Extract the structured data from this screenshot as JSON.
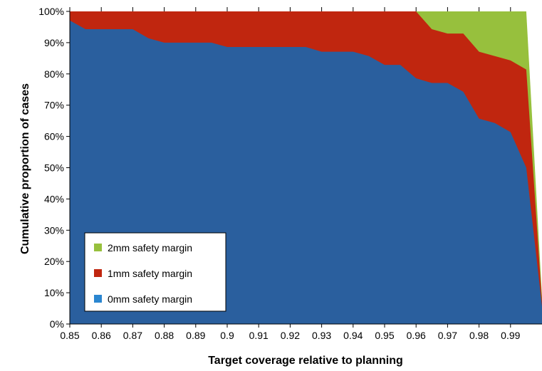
{
  "chart_data": {
    "type": "area",
    "stacked": true,
    "xlabel": "Target coverage relative to planning",
    "ylabel": "Cumulative proportion of cases",
    "xlim": [
      0.85,
      1.0
    ],
    "ylim": [
      0,
      1.0
    ],
    "x_ticks": [
      0.85,
      0.86,
      0.87,
      0.88,
      0.89,
      0.9,
      0.91,
      0.92,
      0.93,
      0.94,
      0.95,
      0.96,
      0.97,
      0.98,
      0.99
    ],
    "x_tick_labels": [
      "0.85",
      "0.86",
      "0.87",
      "0.88",
      "0.89",
      "0.9",
      "0.91",
      "0.92",
      "0.93",
      "0.94",
      "0.95",
      "0.96",
      "0.97",
      "0.98",
      "0.99"
    ],
    "y_ticks": [
      0,
      0.1,
      0.2,
      0.3,
      0.4,
      0.5,
      0.6,
      0.7,
      0.8,
      0.9,
      1.0
    ],
    "y_tick_labels": [
      "0%",
      "10%",
      "20%",
      "30%",
      "40%",
      "50%",
      "60%",
      "70%",
      "80%",
      "90%",
      "100%"
    ],
    "legend_position": "bottom-left",
    "x": [
      0.85,
      0.855,
      0.86,
      0.865,
      0.87,
      0.875,
      0.88,
      0.885,
      0.89,
      0.895,
      0.9,
      0.905,
      0.91,
      0.915,
      0.92,
      0.925,
      0.93,
      0.935,
      0.94,
      0.945,
      0.95,
      0.955,
      0.96,
      0.965,
      0.97,
      0.975,
      0.98,
      0.985,
      0.99,
      0.995,
      1.0
    ],
    "series": [
      {
        "name": "0mm safety margin",
        "color": "#2a5f9e",
        "values": [
          0.971,
          0.943,
          0.943,
          0.943,
          0.943,
          0.914,
          0.9,
          0.9,
          0.9,
          0.9,
          0.886,
          0.886,
          0.886,
          0.886,
          0.886,
          0.886,
          0.871,
          0.871,
          0.871,
          0.857,
          0.829,
          0.829,
          0.786,
          0.771,
          0.771,
          0.743,
          0.657,
          0.643,
          0.614,
          0.5,
          0.057
        ]
      },
      {
        "name": "1mm safety margin",
        "color": "#c0260f",
        "values": [
          1.0,
          1.0,
          1.0,
          1.0,
          1.0,
          1.0,
          1.0,
          1.0,
          1.0,
          1.0,
          1.0,
          1.0,
          1.0,
          1.0,
          1.0,
          1.0,
          1.0,
          1.0,
          1.0,
          1.0,
          1.0,
          1.0,
          1.0,
          0.943,
          0.929,
          0.929,
          0.871,
          0.857,
          0.843,
          0.814,
          0.071
        ]
      },
      {
        "name": "2mm safety margin",
        "color": "#97c03d",
        "values": [
          1.0,
          1.0,
          1.0,
          1.0,
          1.0,
          1.0,
          1.0,
          1.0,
          1.0,
          1.0,
          1.0,
          1.0,
          1.0,
          1.0,
          1.0,
          1.0,
          1.0,
          1.0,
          1.0,
          1.0,
          1.0,
          1.0,
          1.0,
          1.0,
          1.0,
          1.0,
          1.0,
          1.0,
          1.0,
          1.0,
          0.086
        ]
      }
    ],
    "legend_order": [
      "2mm safety margin",
      "1mm safety margin",
      "0mm safety margin"
    ],
    "legend_swatch_colors": {
      "2mm safety margin": "#97c03d",
      "1mm safety margin": "#c0260f",
      "0mm safety margin": "#2b86d0"
    }
  }
}
